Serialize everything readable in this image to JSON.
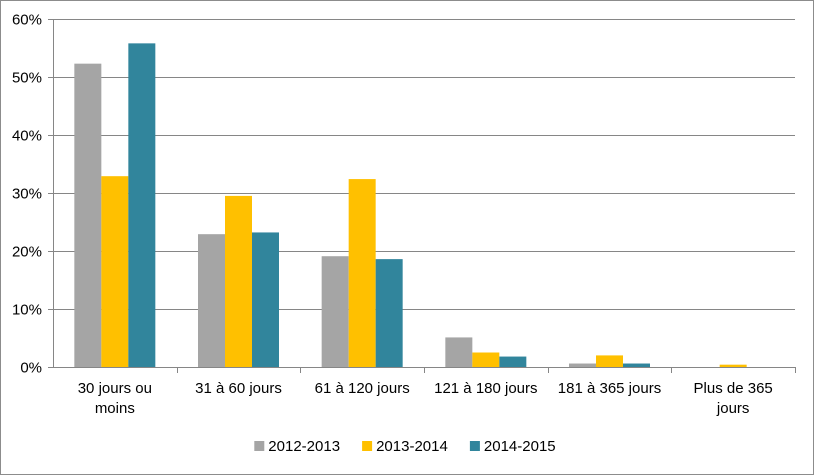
{
  "chart_data": {
    "type": "bar",
    "title": "",
    "xlabel": "",
    "ylabel": "",
    "categories": [
      "30 jours ou moins",
      "31 à 60 jours",
      "61 à 120 jours",
      "121 à 180 jours",
      "181 à 365 jours",
      "Plus de 365 jours"
    ],
    "series": [
      {
        "name": "2012-2013",
        "color": "#a5a5a5",
        "values": [
          52.3,
          22.9,
          19.1,
          5.1,
          0.6,
          0.0
        ]
      },
      {
        "name": "2013-2014",
        "color": "#ffc000",
        "values": [
          32.9,
          29.5,
          32.4,
          2.5,
          2.0,
          0.4
        ]
      },
      {
        "name": "2014-2015",
        "color": "#31859c",
        "values": [
          55.8,
          23.2,
          18.6,
          1.8,
          0.6,
          0.0
        ]
      }
    ],
    "ylim": [
      0,
      60
    ],
    "yticks": [
      0,
      10,
      20,
      30,
      40,
      50,
      60
    ],
    "ytick_labels": [
      "0%",
      "10%",
      "20%",
      "30%",
      "40%",
      "50%",
      "60%"
    ],
    "grid": true,
    "legend_position": "bottom"
  }
}
